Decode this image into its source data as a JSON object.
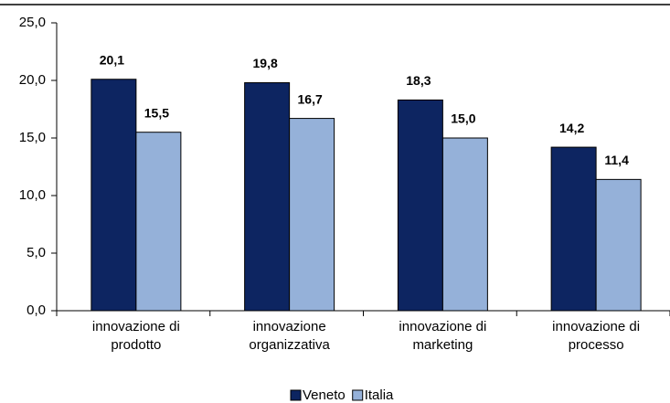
{
  "chart_data": {
    "type": "bar",
    "categories": [
      "innovazione di\nprodotto",
      "innovazione\norganizzativa",
      "innovazione di\nmarketing",
      "innovazione di\nprocesso"
    ],
    "series": [
      {
        "name": "Veneto",
        "color": "#0d2561",
        "values": [
          20.1,
          19.8,
          18.3,
          14.2
        ],
        "value_labels": [
          "20,1",
          "19,8",
          "18,3",
          "14,2"
        ]
      },
      {
        "name": "Italia",
        "color": "#95b1d9",
        "values": [
          15.5,
          16.7,
          15.0,
          11.4
        ],
        "value_labels": [
          "15,5",
          "16,7",
          "15,0",
          "11,4"
        ]
      }
    ],
    "ylim": [
      0,
      25
    ],
    "yticks": [
      {
        "value": 0,
        "label": "0,0"
      },
      {
        "value": 5,
        "label": "5,0"
      },
      {
        "value": 10,
        "label": "10,0"
      },
      {
        "value": 15,
        "label": "15,0"
      },
      {
        "value": 20,
        "label": "20,0"
      },
      {
        "value": 25,
        "label": "25,0"
      }
    ],
    "grid": false,
    "legend": "bottom"
  }
}
